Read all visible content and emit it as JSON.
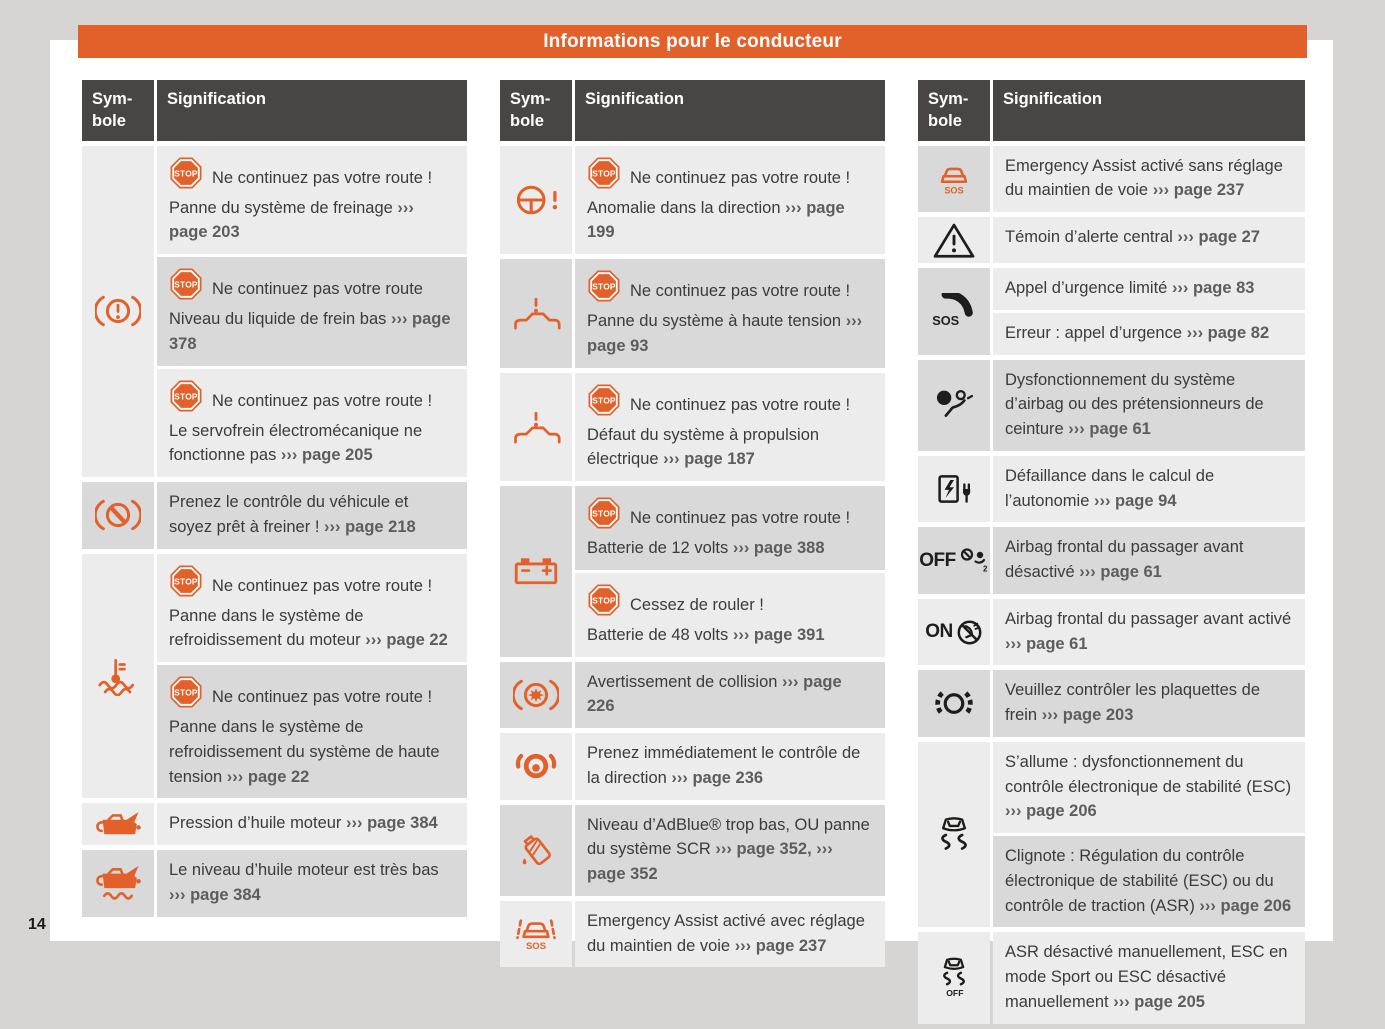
{
  "banner": {
    "title": "Informations pour le conducteur",
    "bg_color": "#e2612a"
  },
  "footer": {
    "page_number": "14"
  },
  "colors": {
    "accent_orange": "#e2612a",
    "header_dark": "#474645",
    "row_light": "#ececec",
    "row_dark": "#d9d9d9",
    "body_text": "#3b3b3a",
    "reference_text": "#5e5d5c",
    "icon_black": "#1d1d1b"
  },
  "tables": [
    {
      "header": {
        "symbol_label": "Sym-bole",
        "signification_label": "Signification"
      },
      "groups": [
        {
          "icon": "brake-warning-icon",
          "sym_bg": "L",
          "rows": [
            {
              "bg": "L",
              "stop_badge": "STOP",
              "stop_text": "Ne continuez pas votre route !",
              "segments": [
                {
                  "t": "Panne du système de freinage "
                },
                {
                  "t": "››› page 203",
                  "ref": true
                }
              ]
            },
            {
              "bg": "D",
              "stop_badge": "STOP",
              "stop_text": "Ne continuez pas votre route",
              "segments": [
                {
                  "t": "Niveau du liquide de frein bas "
                },
                {
                  "t": "››› page 378",
                  "ref": true
                }
              ]
            },
            {
              "bg": "L",
              "stop_badge": "STOP",
              "stop_text": "Ne continuez pas votre route !",
              "segments": [
                {
                  "t": "Le servofrein électromécanique ne fonctionne pas "
                },
                {
                  "t": "››› page 205",
                  "ref": true
                }
              ]
            }
          ]
        },
        {
          "icon": "auto-brake-icon",
          "sym_bg": "D",
          "rows": [
            {
              "bg": "D",
              "segments": [
                {
                  "t": "Prenez le contrôle du véhicule et soyez prêt à freiner ! "
                },
                {
                  "t": "››› page 218",
                  "ref": true
                }
              ]
            }
          ]
        },
        {
          "icon": "coolant-temperature-icon",
          "sym_bg": "L",
          "rows": [
            {
              "bg": "L",
              "stop_badge": "STOP",
              "stop_text": "Ne continuez pas votre route !",
              "segments": [
                {
                  "t": "Panne dans le système de refroidissement du moteur "
                },
                {
                  "t": "››› page 22",
                  "ref": true
                }
              ]
            },
            {
              "bg": "D",
              "stop_badge": "STOP",
              "stop_text": "Ne continuez pas votre route !",
              "segments": [
                {
                  "t": "Panne dans le système de refroidissement du système de haute tension "
                },
                {
                  "t": "››› page 22",
                  "ref": true
                }
              ]
            }
          ]
        },
        {
          "icon": "oil-pressure-icon",
          "sym_bg": "L",
          "rows": [
            {
              "bg": "L",
              "segments": [
                {
                  "t": "Pression d’huile moteur "
                },
                {
                  "t": "››› page 384",
                  "ref": true
                }
              ]
            }
          ]
        },
        {
          "icon": "oil-level-icon",
          "sym_bg": "D",
          "rows": [
            {
              "bg": "D",
              "segments": [
                {
                  "t": "Le niveau d’huile moteur est très bas "
                },
                {
                  "t": "››› page 384",
                  "ref": true
                }
              ]
            }
          ]
        }
      ]
    },
    {
      "header": {
        "symbol_label": "Sym-bole",
        "signification_label": "Signification"
      },
      "groups": [
        {
          "icon": "steering-wheel-warning-icon",
          "sym_bg": "L",
          "rows": [
            {
              "bg": "L",
              "stop_badge": "STOP",
              "stop_text": "Ne continuez pas votre route !",
              "segments": [
                {
                  "t": "Anomalie dans la direction "
                },
                {
                  "t": "››› page 199",
                  "ref": true
                }
              ]
            }
          ]
        },
        {
          "icon": "car-warning-icon",
          "sym_bg": "D",
          "rows": [
            {
              "bg": "D",
              "stop_badge": "STOP",
              "stop_text": "Ne continuez pas votre route !",
              "segments": [
                {
                  "t": "Panne du système à haute tension "
                },
                {
                  "t": "››› page 93",
                  "ref": true
                }
              ]
            }
          ]
        },
        {
          "icon": "car-warning-icon",
          "sym_bg": "L",
          "rows": [
            {
              "bg": "L",
              "stop_badge": "STOP",
              "stop_text": "Ne continuez pas votre route !",
              "segments": [
                {
                  "t": "Défaut du système à propulsion électrique "
                },
                {
                  "t": "››› page 187",
                  "ref": true
                }
              ]
            }
          ]
        },
        {
          "icon": "battery-icon",
          "sym_bg": "D",
          "rows": [
            {
              "bg": "D",
              "stop_badge": "STOP",
              "stop_text": "Ne continuez pas votre route !",
              "segments": [
                {
                  "t": "Batterie de 12 volts "
                },
                {
                  "t": "››› page 388",
                  "ref": true
                }
              ]
            },
            {
              "bg": "L",
              "stop_badge": "STOP",
              "stop_text": "Cessez de rouler !",
              "segments": [
                {
                  "t": "Batterie de 48 volts "
                },
                {
                  "t": "››› page 391",
                  "ref": true
                }
              ]
            }
          ]
        },
        {
          "icon": "collision-warning-icon",
          "sym_bg": "D",
          "rows": [
            {
              "bg": "D",
              "segments": [
                {
                  "t": "Avertissement de collision "
                },
                {
                  "t": "››› page 226",
                  "ref": true
                }
              ]
            }
          ]
        },
        {
          "icon": "hands-on-steering-wheel-icon",
          "sym_bg": "L",
          "rows": [
            {
              "bg": "L",
              "segments": [
                {
                  "t": "Prenez immédiatement le contrôle de la direction "
                },
                {
                  "t": "››› page 236",
                  "ref": true
                }
              ]
            }
          ]
        },
        {
          "icon": "adblue-icon",
          "sym_bg": "D",
          "rows": [
            {
              "bg": "D",
              "segments": [
                {
                  "t": "Niveau d’AdBlue® trop bas, OU panne du système SCR "
                },
                {
                  "t": "››› page 352,",
                  "ref": true
                },
                {
                  "t": " "
                },
                {
                  "t": "››› page 352",
                  "ref": true
                }
              ]
            }
          ]
        },
        {
          "icon": "emergency-assist-lane-icon",
          "sym_bg": "L",
          "rows": [
            {
              "bg": "L",
              "segments": [
                {
                  "t": "Emergency Assist activé avec réglage du maintien de voie "
                },
                {
                  "t": "››› page 237",
                  "ref": true
                }
              ]
            }
          ]
        }
      ]
    },
    {
      "header": {
        "symbol_label": "Sym-bole",
        "signification_label": "Signification"
      },
      "groups": [
        {
          "icon": "emergency-assist-icon",
          "sym_bg": "D",
          "rows": [
            {
              "bg": "L",
              "segments": [
                {
                  "t": "Emergency Assist activé sans réglage du maintien de voie "
                },
                {
                  "t": "››› page 237",
                  "ref": true
                }
              ]
            }
          ]
        },
        {
          "icon": "warning-triangle-icon",
          "sym_bg": "L",
          "rows": [
            {
              "bg": "L",
              "segments": [
                {
                  "t": "Témoin d’alerte central "
                },
                {
                  "t": "››› page 27",
                  "ref": true
                }
              ]
            }
          ]
        },
        {
          "icon": "sos-phone-icon",
          "sym_bg": "D",
          "rows": [
            {
              "bg": "L",
              "segments": [
                {
                  "t": "Appel d’urgence limité "
                },
                {
                  "t": "››› page 83",
                  "ref": true
                }
              ]
            },
            {
              "bg": "L",
              "segments": [
                {
                  "t": "Erreur : appel d’urgence "
                },
                {
                  "t": "››› page 82",
                  "ref": true
                }
              ]
            }
          ]
        },
        {
          "icon": "airbag-warning-icon",
          "sym_bg": "D",
          "rows": [
            {
              "bg": "D",
              "segments": [
                {
                  "t": "Dysfonctionnement du système d’airbag ou des prétensionneurs de ceinture "
                },
                {
                  "t": "››› page 61",
                  "ref": true
                }
              ]
            }
          ]
        },
        {
          "icon": "charging-station-icon",
          "sym_bg": "L",
          "rows": [
            {
              "bg": "L",
              "segments": [
                {
                  "t": "Défaillance dans le calcul de l’autonomie "
                },
                {
                  "t": "››› page 94",
                  "ref": true
                }
              ]
            }
          ]
        },
        {
          "icon": "airbag-off-icon",
          "sym_bg": "D",
          "rows": [
            {
              "bg": "D",
              "segments": [
                {
                  "t": "Airbag frontal du passager avant désactivé "
                },
                {
                  "t": "››› page 61",
                  "ref": true
                }
              ]
            }
          ]
        },
        {
          "icon": "airbag-on-icon",
          "sym_bg": "L",
          "rows": [
            {
              "bg": "L",
              "segments": [
                {
                  "t": "Airbag frontal du passager avant activé "
                },
                {
                  "t": "››› page 61",
                  "ref": true
                }
              ]
            }
          ]
        },
        {
          "icon": "brake-pads-icon",
          "sym_bg": "D",
          "rows": [
            {
              "bg": "D",
              "segments": [
                {
                  "t": "Veuillez contrôler les plaquettes de frein "
                },
                {
                  "t": "››› page 203",
                  "ref": true
                }
              ]
            }
          ]
        },
        {
          "icon": "esc-icon",
          "sym_bg": "L",
          "rows": [
            {
              "bg": "L",
              "segments": [
                {
                  "t": "S’allume : dysfonctionnement du contrôle électronique de stabilité (ESC) "
                },
                {
                  "t": "››› page 206",
                  "ref": true
                }
              ]
            },
            {
              "bg": "D",
              "segments": [
                {
                  "t": "Clignote : Régulation du contrôle électronique de stabilité (ESC) ou du contrôle de traction (ASR) "
                },
                {
                  "t": "››› page 206",
                  "ref": true
                }
              ]
            }
          ]
        },
        {
          "icon": "esc-off-icon",
          "sym_bg": "L",
          "rows": [
            {
              "bg": "L",
              "segments": [
                {
                  "t": "ASR désactivé manuellement, ESC en mode Sport ou ESC désactivé manuellement "
                },
                {
                  "t": "››› page 205",
                  "ref": true
                }
              ]
            }
          ]
        }
      ]
    }
  ]
}
